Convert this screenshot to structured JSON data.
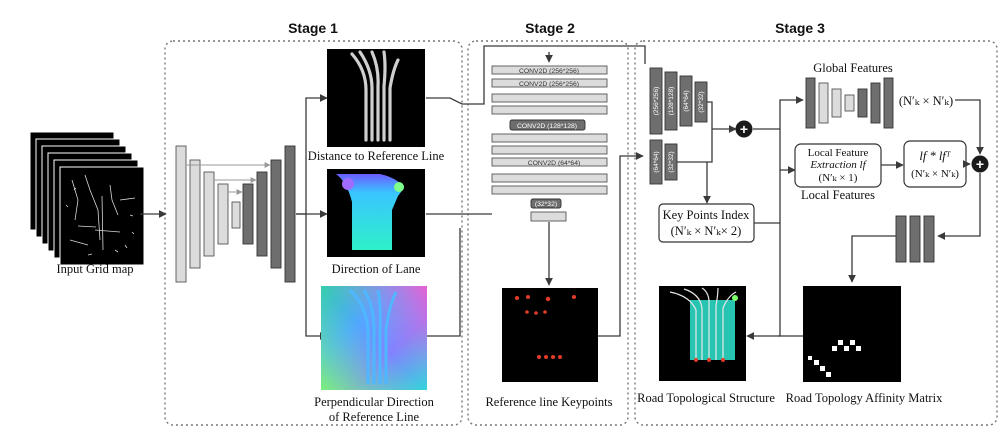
{
  "stages": {
    "s1": "Stage 1",
    "s2": "Stage 2",
    "s3": "Stage 3"
  },
  "input": {
    "label": "Input Grid map"
  },
  "stage1_outputs": {
    "distance": "Distance to Reference Line",
    "direction": "Direction of Lane",
    "perp_line1": "Perpendicular Direction",
    "perp_line2": "of Reference Line"
  },
  "stage2": {
    "layers": [
      "CONV2D (256*256)",
      "CONV2D (256*256)",
      "CONV2D (128*128)",
      "CONV2D (64*64)",
      "(32*32)"
    ],
    "output_label": "Reference line Keypoints"
  },
  "stage3": {
    "enc_top": [
      "(256*256)",
      "(128*128)",
      "(64*64)",
      "(32*32)"
    ],
    "enc_bottom": [
      "(64*64)",
      "(32*32)"
    ],
    "global_features": "Global Features",
    "global_dim": "(N′ₖ × N′ₖ)",
    "local_box_line1": "Local Feature",
    "local_box_line2": "Extraction lf",
    "local_box_line3": "(N′ₖ × 1)",
    "local_features": "Local Features",
    "product_line1": "lf * lfᵀ",
    "product_line2": "(N′ₖ × N′ₖ)",
    "keypoints_line1": "Key Points Index",
    "keypoints_line2": "(N′ₖ × N′ₖ× 2)",
    "plus_symbol": "+",
    "road_structure": "Road Topological Structure",
    "affinity": "Road Topology Affinity Matrix"
  },
  "colors": {
    "stage_border": "#777777",
    "heatmap_bg": "#000000",
    "lane_cyan": "#2ee8d0",
    "keypoint_red": "#e23b2a"
  }
}
